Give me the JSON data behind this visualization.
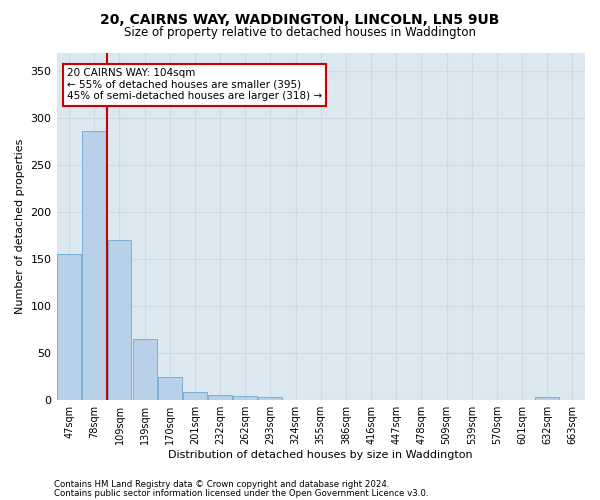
{
  "title": "20, CAIRNS WAY, WADDINGTON, LINCOLN, LN5 9UB",
  "subtitle": "Size of property relative to detached houses in Waddington",
  "xlabel": "Distribution of detached houses by size in Waddington",
  "ylabel": "Number of detached properties",
  "bar_labels": [
    "47sqm",
    "78sqm",
    "109sqm",
    "139sqm",
    "170sqm",
    "201sqm",
    "232sqm",
    "262sqm",
    "293sqm",
    "324sqm",
    "355sqm",
    "386sqm",
    "416sqm",
    "447sqm",
    "478sqm",
    "509sqm",
    "539sqm",
    "570sqm",
    "601sqm",
    "632sqm",
    "663sqm"
  ],
  "bar_values": [
    156,
    286,
    170,
    65,
    25,
    9,
    6,
    5,
    3,
    0,
    0,
    0,
    0,
    0,
    0,
    0,
    0,
    0,
    0,
    3,
    0
  ],
  "bar_color": "#b8d0e8",
  "bar_edge_color": "#6aaad4",
  "ylim": [
    0,
    370
  ],
  "yticks": [
    0,
    50,
    100,
    150,
    200,
    250,
    300,
    350
  ],
  "red_line_x": 1.5,
  "annotation_line1": "20 CAIRNS WAY: 104sqm",
  "annotation_line2": "← 55% of detached houses are smaller (395)",
  "annotation_line3": "45% of semi-detached houses are larger (318) →",
  "red_line_color": "#cc0000",
  "annotation_box_color": "#ffffff",
  "annotation_box_edge": "#cc0000",
  "grid_color": "#ccd9e8",
  "background_color": "#dce8f0",
  "footer_line1": "Contains HM Land Registry data © Crown copyright and database right 2024.",
  "footer_line2": "Contains public sector information licensed under the Open Government Licence v3.0."
}
